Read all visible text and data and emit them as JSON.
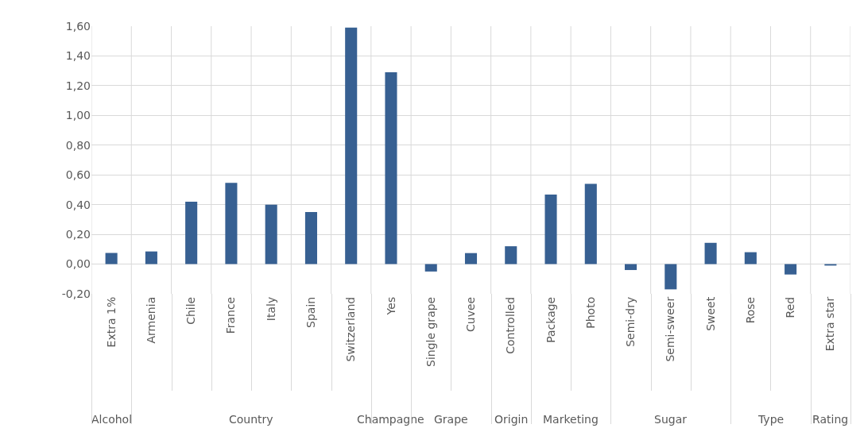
{
  "chart_data": {
    "type": "bar",
    "categories": [
      "Extra 1%",
      "Armenia",
      "Chile",
      "France",
      "Italy",
      "Spain",
      "Switzerland",
      "Yes",
      "Single grape",
      "Cuvee",
      "Controlled",
      "Package",
      "Photo",
      "Semi-dry",
      "Semi-sweer",
      "Sweet",
      "Rose",
      "Red",
      "Extra star"
    ],
    "values": [
      0.075,
      0.085,
      0.42,
      0.547,
      0.4,
      0.35,
      1.59,
      1.29,
      -0.05,
      0.074,
      0.12,
      0.467,
      0.54,
      -0.04,
      -0.17,
      0.143,
      0.08,
      -0.07,
      -0.01
    ],
    "color": "#376092",
    "annotations": [
      "Alcohol",
      "Country",
      "Champagne",
      "Grape",
      "Origin",
      "Marketing",
      "Sugar",
      "Type",
      "Rating"
    ],
    "ylim": [
      -0.2,
      1.6
    ],
    "yticks": [
      {
        "value": -0.2,
        "label": "-0,20"
      },
      {
        "value": 0,
        "label": "0,00"
      },
      {
        "value": 0.2,
        "label": "0,20"
      },
      {
        "value": 0.4,
        "label": "0,40"
      },
      {
        "value": 0.6,
        "label": "0,60"
      },
      {
        "value": 0.8,
        "label": "0,80"
      },
      {
        "value": 1.0,
        "label": "1,00"
      },
      {
        "value": 1.2,
        "label": "1,20"
      },
      {
        "value": 1.4,
        "label": "1,40"
      },
      {
        "value": 1.6,
        "label": "1,60"
      }
    ],
    "grid": true,
    "legend": false
  }
}
